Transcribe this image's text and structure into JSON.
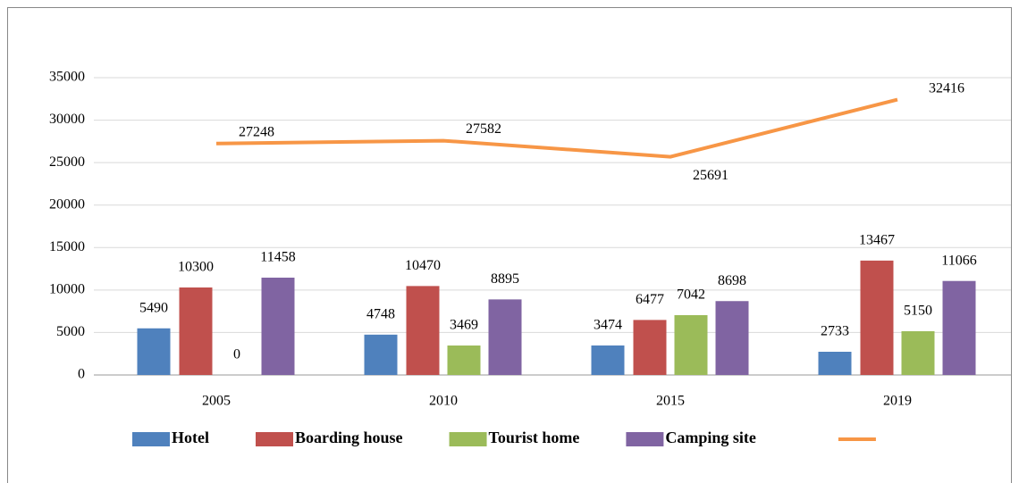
{
  "chart_data": {
    "type": "bar",
    "categories": [
      "2005",
      "2010",
      "2015",
      "2019"
    ],
    "series": [
      {
        "name": "Hotel",
        "color": "#4f81bd",
        "values": [
          5490,
          4748,
          3474,
          2733
        ]
      },
      {
        "name": "Boarding house",
        "color": "#c0504d",
        "values": [
          10300,
          10470,
          6477,
          13467
        ]
      },
      {
        "name": "Tourist home",
        "color": "#9bbb59",
        "values": [
          0,
          3469,
          7042,
          5150
        ]
      },
      {
        "name": "Camping site",
        "color": "#8064a2",
        "values": [
          11458,
          8895,
          8698,
          11066
        ]
      },
      {
        "type": "line",
        "color": "#f79646",
        "values": [
          27248,
          27582,
          25691,
          32416
        ]
      }
    ],
    "ylim": [
      0,
      35000
    ],
    "yticks": [
      0,
      5000,
      10000,
      15000,
      20000,
      25000,
      30000,
      35000
    ],
    "grid": true,
    "legend": "bottom"
  }
}
